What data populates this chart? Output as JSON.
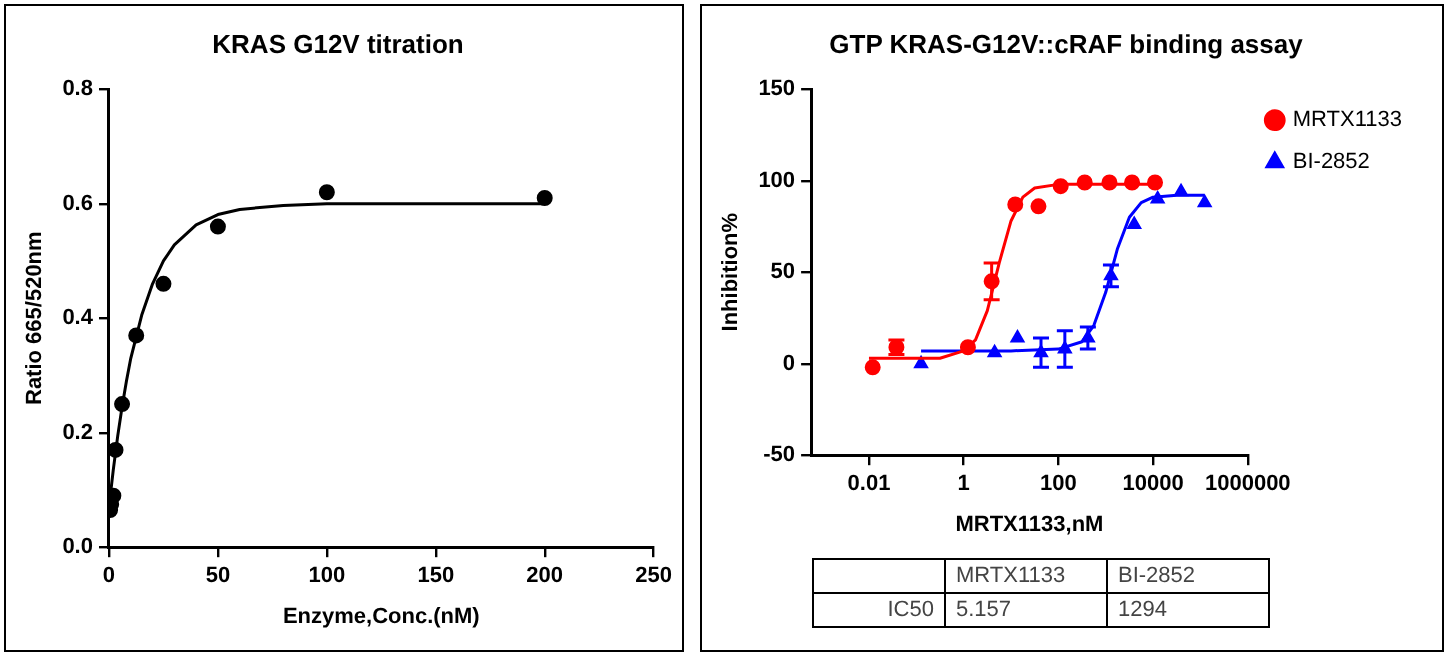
{
  "chart_data": [
    {
      "type": "scatter",
      "title": "KRAS G12V titration",
      "xlabel": "Enzyme,Conc.(nM)",
      "ylabel": "Ratio 665/520nm",
      "grid": false,
      "legend": false,
      "xlim": [
        0,
        250
      ],
      "xticks": [
        0,
        50,
        100,
        150,
        200,
        250
      ],
      "ylim": [
        0,
        0.8
      ],
      "yticks": [
        {
          "value": 0,
          "label": "0.0"
        },
        {
          "value": 0.2,
          "label": "0.2"
        },
        {
          "value": 0.4,
          "label": "0.4"
        },
        {
          "value": 0.6,
          "label": "0.6"
        },
        {
          "value": 0.8,
          "label": "0.8"
        }
      ],
      "series": [
        {
          "type": "scatter",
          "marker": "circle",
          "color": "#000000",
          "x": [
            0.5,
            1,
            2,
            3,
            6,
            12.5,
            25,
            50,
            100,
            200
          ],
          "values": [
            0.065,
            0.075,
            0.09,
            0.17,
            0.25,
            0.37,
            0.46,
            0.56,
            0.62,
            0.61
          ]
        },
        {
          "type": "line",
          "marker": "none",
          "color": "#000000",
          "x": [
            0,
            2,
            4,
            6,
            8,
            10,
            15,
            20,
            25,
            30,
            40,
            50,
            60,
            80,
            100,
            150,
            200
          ],
          "values": [
            0.07,
            0.136,
            0.194,
            0.245,
            0.29,
            0.33,
            0.405,
            0.46,
            0.5,
            0.528,
            0.563,
            0.581,
            0.59,
            0.597,
            0.6,
            0.6,
            0.6
          ]
        }
      ]
    },
    {
      "type": "scatter",
      "title": "GTP KRAS-G12V::cRAF binding assay",
      "xlabel": "MRTX1133,nM",
      "ylabel": "Inhibition%",
      "grid": false,
      "legend": "right",
      "log": "x",
      "xlim": [
        0.0006,
        1000000
      ],
      "xticks": [
        0.01,
        1,
        100,
        10000,
        1000000
      ],
      "ylim": [
        -50,
        150
      ],
      "yticks": [
        -50,
        0,
        50,
        100,
        150
      ],
      "annotations": [
        "MRTX1133",
        "BI-2852",
        "IC50",
        "5.157",
        "1294"
      ],
      "series": [
        {
          "type": "scatter",
          "name": "MRTX1133",
          "marker": "circle",
          "color": "#ff0000",
          "x": [
            0.012,
            0.038,
            1.23,
            3.9,
            12.3,
            38,
            112,
            360,
            1200,
            3600,
            11000
          ],
          "values": [
            -2,
            9,
            9,
            45,
            87,
            86,
            97,
            99,
            99,
            99,
            99
          ],
          "errors": [
            null,
            4,
            null,
            10,
            null,
            null,
            null,
            null,
            null,
            null,
            null
          ]
        },
        {
          "type": "line",
          "marker": "none",
          "color": "#ff0000",
          "x": [
            0.01,
            0.1,
            0.316,
            1,
            1.778,
            3.162,
            5.623,
            10,
            17.78,
            31.62,
            100,
            1000,
            10000
          ],
          "values": [
            3,
            3,
            3,
            7,
            13,
            29,
            55,
            78,
            91,
            96,
            98,
            98,
            98
          ]
        },
        {
          "type": "scatter",
          "name": "BI-2852",
          "marker": "triangle",
          "color": "#0000ff",
          "x": [
            0.126,
            4.5,
            13.7,
            43,
            137,
            420,
            1290,
            4000,
            12500,
            39000,
            123000
          ],
          "values": [
            0,
            6,
            14,
            6,
            8,
            14,
            48,
            76,
            90,
            94,
            88
          ],
          "errors": [
            null,
            null,
            null,
            8,
            10,
            6,
            6,
            null,
            null,
            null,
            null
          ]
        },
        {
          "type": "line",
          "marker": "none",
          "color": "#0000ff",
          "x": [
            0.126,
            10,
            100,
            316.2,
            562.3,
            1000,
            1778,
            3162,
            5623,
            10000,
            31623,
            123000
          ],
          "values": [
            7,
            7,
            8,
            12,
            21,
            39,
            63,
            80,
            88,
            91,
            92,
            92
          ]
        }
      ]
    }
  ]
}
